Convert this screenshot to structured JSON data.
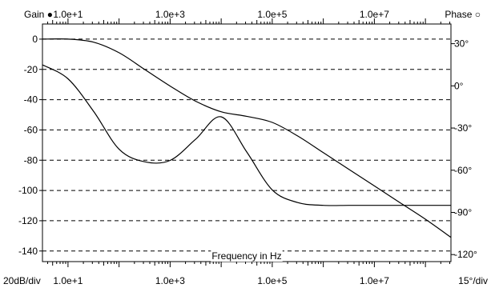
{
  "chart_data": {
    "type": "line",
    "x_scale": "log",
    "xlim": [
      3.16,
      316227766
    ],
    "x_tick_values": [
      10,
      1000,
      100000,
      10000000
    ],
    "x_tick_labels": [
      "1.0e+1",
      "1.0e+3",
      "1.0e+5",
      "1.0e+7"
    ],
    "ylim": [
      -147,
      10
    ],
    "y_ticks": [
      0,
      -20,
      -40,
      -60,
      -80,
      -100,
      -120,
      -140
    ],
    "y_tick_labels": [
      "0",
      "-20",
      "-40",
      "-60",
      "-80",
      "-100",
      "-120",
      "-140"
    ],
    "y2lim": [
      -125,
      44
    ],
    "y2_ticks": [
      30,
      0,
      -30,
      -60,
      -90,
      -120
    ],
    "y2_tick_labels": [
      "30°",
      "0°",
      "-30°",
      "-60°",
      "-90°",
      "-120°"
    ],
    "grid": true,
    "left_header": "Gain",
    "right_header": "Phase",
    "left_scale_label": "20dB/div",
    "right_scale_label": "15°/div",
    "xlabel": "Frequency in Hz",
    "series": [
      {
        "name": "Gain",
        "axis": "left",
        "x": [
          3.16,
          10,
          31.6,
          100,
          316,
          1000,
          3160,
          10000,
          31600,
          100000,
          316000,
          1000000,
          3160000,
          10000000,
          31600000,
          100000000,
          316227766
        ],
        "y": [
          0,
          0,
          -2,
          -9,
          -20,
          -31,
          -41,
          -48,
          -51,
          -55,
          -64,
          -75,
          -86,
          -97,
          -108,
          -119,
          -131
        ]
      },
      {
        "name": "Phase",
        "axis": "right",
        "x": [
          3.16,
          10,
          31.6,
          100,
          316,
          1000,
          3160,
          10000,
          31600,
          100000,
          316000,
          1000000,
          3160000,
          10000000,
          31600000,
          100000000,
          316227766
        ],
        "y": [
          15,
          5,
          -18,
          -45,
          -54,
          -53,
          -38,
          -22,
          -47,
          -74,
          -83,
          -85,
          -85,
          -85,
          -85,
          -85,
          -85
        ]
      }
    ]
  }
}
